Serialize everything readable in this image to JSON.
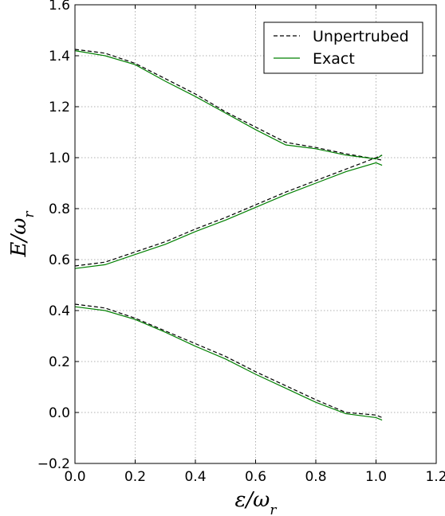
{
  "chart_data": {
    "type": "line",
    "title": "",
    "xlabel": "ε/ω_r",
    "ylabel": "E/ω_r",
    "xlim": [
      0.0,
      1.2
    ],
    "ylim": [
      -0.2,
      1.6
    ],
    "xticks": [
      "0.0",
      "0.2",
      "0.4",
      "0.6",
      "0.8",
      "1.0",
      "1.2"
    ],
    "yticks": [
      "−0.2",
      "0.0",
      "0.2",
      "0.4",
      "0.6",
      "0.8",
      "1.0",
      "1.2",
      "1.4",
      "1.6"
    ],
    "xtick_values": [
      0.0,
      0.2,
      0.4,
      0.6,
      0.8,
      1.0,
      1.2
    ],
    "ytick_values": [
      -0.2,
      0.0,
      0.2,
      0.4,
      0.6,
      0.8,
      1.0,
      1.2,
      1.4,
      1.6
    ],
    "grid": true,
    "legend": {
      "placement": "top-right",
      "entries": [
        "Unpertrubed",
        "Exact"
      ]
    },
    "series": [
      {
        "name": "Unpertrubed",
        "color": "#000000",
        "style": "dashed",
        "curves": [
          {
            "x": [
              0.0,
              0.1,
              0.2,
              0.3,
              0.4,
              0.5,
              0.6,
              0.7,
              0.8,
              0.9,
              1.0,
              1.02
            ],
            "y": [
              1.425,
              1.41,
              1.37,
              1.31,
              1.25,
              1.18,
              1.12,
              1.06,
              1.04,
              1.015,
              0.995,
              0.99
            ]
          },
          {
            "x": [
              0.0,
              0.1,
              0.2,
              0.3,
              0.4,
              0.5,
              0.6,
              0.7,
              0.8,
              0.9,
              1.0,
              1.02
            ],
            "y": [
              0.575,
              0.59,
              0.63,
              0.67,
              0.72,
              0.765,
              0.815,
              0.865,
              0.91,
              0.955,
              1.0,
              1.01
            ]
          },
          {
            "x": [
              0.0,
              0.1,
              0.2,
              0.3,
              0.4,
              0.5,
              0.6,
              0.7,
              0.8,
              0.9,
              1.0,
              1.02
            ],
            "y": [
              0.425,
              0.41,
              0.37,
              0.32,
              0.27,
              0.22,
              0.16,
              0.105,
              0.05,
              0.0,
              -0.01,
              -0.02
            ]
          }
        ]
      },
      {
        "name": "Exact",
        "color": "#008000",
        "style": "solid",
        "curves": [
          {
            "x": [
              0.0,
              0.1,
              0.2,
              0.3,
              0.4,
              0.5,
              0.6,
              0.7,
              0.8,
              0.9,
              1.0,
              1.02
            ],
            "y": [
              1.42,
              1.4,
              1.365,
              1.3,
              1.24,
              1.175,
              1.11,
              1.05,
              1.035,
              1.01,
              0.995,
              1.01
            ]
          },
          {
            "x": [
              0.0,
              0.1,
              0.2,
              0.3,
              0.4,
              0.5,
              0.6,
              0.7,
              0.8,
              0.9,
              1.0,
              1.02
            ],
            "y": [
              0.565,
              0.58,
              0.62,
              0.66,
              0.71,
              0.755,
              0.805,
              0.855,
              0.9,
              0.945,
              0.98,
              0.97
            ]
          },
          {
            "x": [
              0.0,
              0.1,
              0.2,
              0.3,
              0.4,
              0.5,
              0.6,
              0.7,
              0.8,
              0.9,
              1.0,
              1.02
            ],
            "y": [
              0.415,
              0.4,
              0.365,
              0.315,
              0.26,
              0.21,
              0.15,
              0.095,
              0.04,
              -0.005,
              -0.02,
              -0.03
            ]
          }
        ]
      }
    ]
  }
}
